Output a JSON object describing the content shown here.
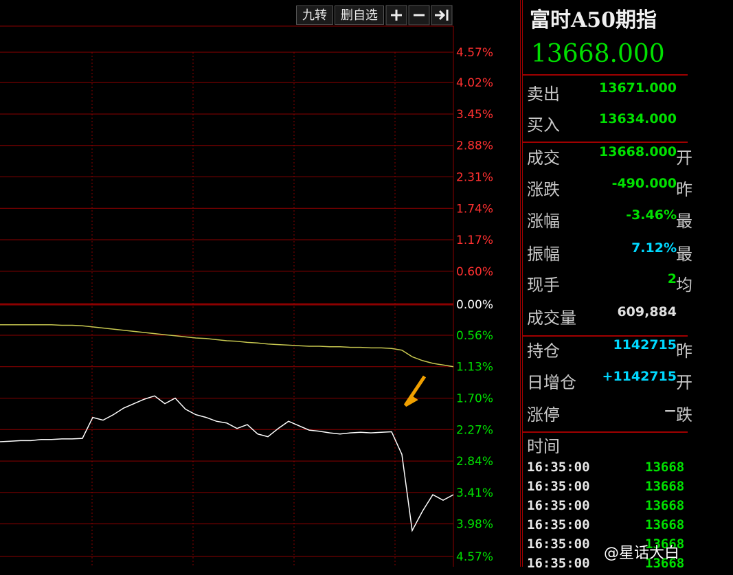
{
  "toolbar": {
    "buttons": [
      "九转",
      "删自选"
    ]
  },
  "chart": {
    "ylim": [
      -4.57,
      4.57
    ],
    "yticks": [
      {
        "value": 4.57,
        "label": "4.57%"
      },
      {
        "value": 4.02,
        "label": "4.02%"
      },
      {
        "value": 3.45,
        "label": "3.45%"
      },
      {
        "value": 2.88,
        "label": "2.88%"
      },
      {
        "value": 2.31,
        "label": "2.31%"
      },
      {
        "value": 1.74,
        "label": "1.74%"
      },
      {
        "value": 1.17,
        "label": "1.17%"
      },
      {
        "value": 0.6,
        "label": "0.60%"
      },
      {
        "value": 0,
        "label": "0.00%"
      },
      {
        "value": -0.56,
        "label": "0.56%"
      },
      {
        "value": -1.13,
        "label": "1.13%"
      },
      {
        "value": -1.7,
        "label": "1.70%"
      },
      {
        "value": -2.27,
        "label": "2.27%"
      },
      {
        "value": -2.84,
        "label": "2.84%"
      },
      {
        "value": -3.41,
        "label": "3.41%"
      },
      {
        "value": -3.98,
        "label": "3.98%"
      },
      {
        "value": -4.57,
        "label": "4.57%"
      }
    ],
    "tick_colors": {
      "up": "#ff3030",
      "flat": "#ffffff",
      "down": "#00e000"
    },
    "grid_color": "#8c0000",
    "series": [
      {
        "color": "#ffffff",
        "values": [
          -2.49,
          -2.48,
          -2.47,
          -2.47,
          -2.45,
          -2.45,
          -2.44,
          -2.44,
          -2.43,
          -2.05,
          -2.1,
          -2.0,
          -1.88,
          -1.8,
          -1.72,
          -1.66,
          -1.8,
          -1.7,
          -1.9,
          -2.0,
          -2.05,
          -2.12,
          -2.15,
          -2.25,
          -2.18,
          -2.35,
          -2.4,
          -2.25,
          -2.12,
          -2.2,
          -2.28,
          -2.3,
          -2.33,
          -2.35,
          -2.33,
          -2.32,
          -2.33,
          -2.32,
          -2.31,
          -2.72,
          -4.1,
          -3.75,
          -3.45,
          -3.55,
          -3.45
        ]
      },
      {
        "color": "#c8c850",
        "values": [
          -0.37,
          -0.37,
          -0.37,
          -0.37,
          -0.37,
          -0.37,
          -0.38,
          -0.38,
          -0.39,
          -0.41,
          -0.43,
          -0.45,
          -0.47,
          -0.49,
          -0.51,
          -0.53,
          -0.55,
          -0.57,
          -0.59,
          -0.61,
          -0.62,
          -0.64,
          -0.66,
          -0.67,
          -0.69,
          -0.7,
          -0.72,
          -0.73,
          -0.74,
          -0.75,
          -0.76,
          -0.76,
          -0.77,
          -0.77,
          -0.78,
          -0.78,
          -0.79,
          -0.79,
          -0.8,
          -0.83,
          -0.95,
          -1.02,
          -1.07,
          -1.1,
          -1.13
        ]
      }
    ]
  },
  "quote": {
    "title": "富时A50期指",
    "price": "13668.000",
    "rows": [
      {
        "label": "卖出",
        "value": "13671.000",
        "color": "#00e000"
      },
      {
        "label": "买入",
        "value": "13634.000",
        "color": "#00e000"
      },
      {
        "label": "成交",
        "value": "13668.000",
        "color": "#00e000",
        "suffix": "开"
      },
      {
        "label": "涨跌",
        "value": "-490.000",
        "color": "#00e000",
        "suffix": "昨"
      },
      {
        "label": "涨幅",
        "value": "-3.46%",
        "color": "#00e000",
        "suffix": "最"
      },
      {
        "label": "振幅",
        "value": "7.12%",
        "color": "#00d8ff",
        "suffix": "最"
      },
      {
        "label": "现手",
        "value": "2",
        "color": "#00e000",
        "suffix": "均"
      },
      {
        "label": "成交量",
        "value": "609,884",
        "color": "#e0e0e0"
      },
      {
        "label": "持仓",
        "value": "1142715",
        "color": "#00d8ff",
        "suffix": "昨"
      },
      {
        "label": "日增仓",
        "value": "+1142715",
        "color": "#00d8ff",
        "suffix": "开"
      },
      {
        "label": "涨停",
        "value": "－",
        "color": "#e0e0e0",
        "suffix": "跌"
      }
    ]
  },
  "trades": {
    "header": "时间",
    "rows": [
      {
        "time": "16:35:00",
        "price": "13668"
      },
      {
        "time": "16:35:00",
        "price": "13668"
      },
      {
        "time": "16:35:00",
        "price": "13668"
      },
      {
        "time": "16:35:00",
        "price": "13668"
      },
      {
        "time": "16:35:00",
        "price": "13668"
      },
      {
        "time": "16:35:00",
        "price": "13668"
      }
    ]
  },
  "watermark": "@星话大白"
}
